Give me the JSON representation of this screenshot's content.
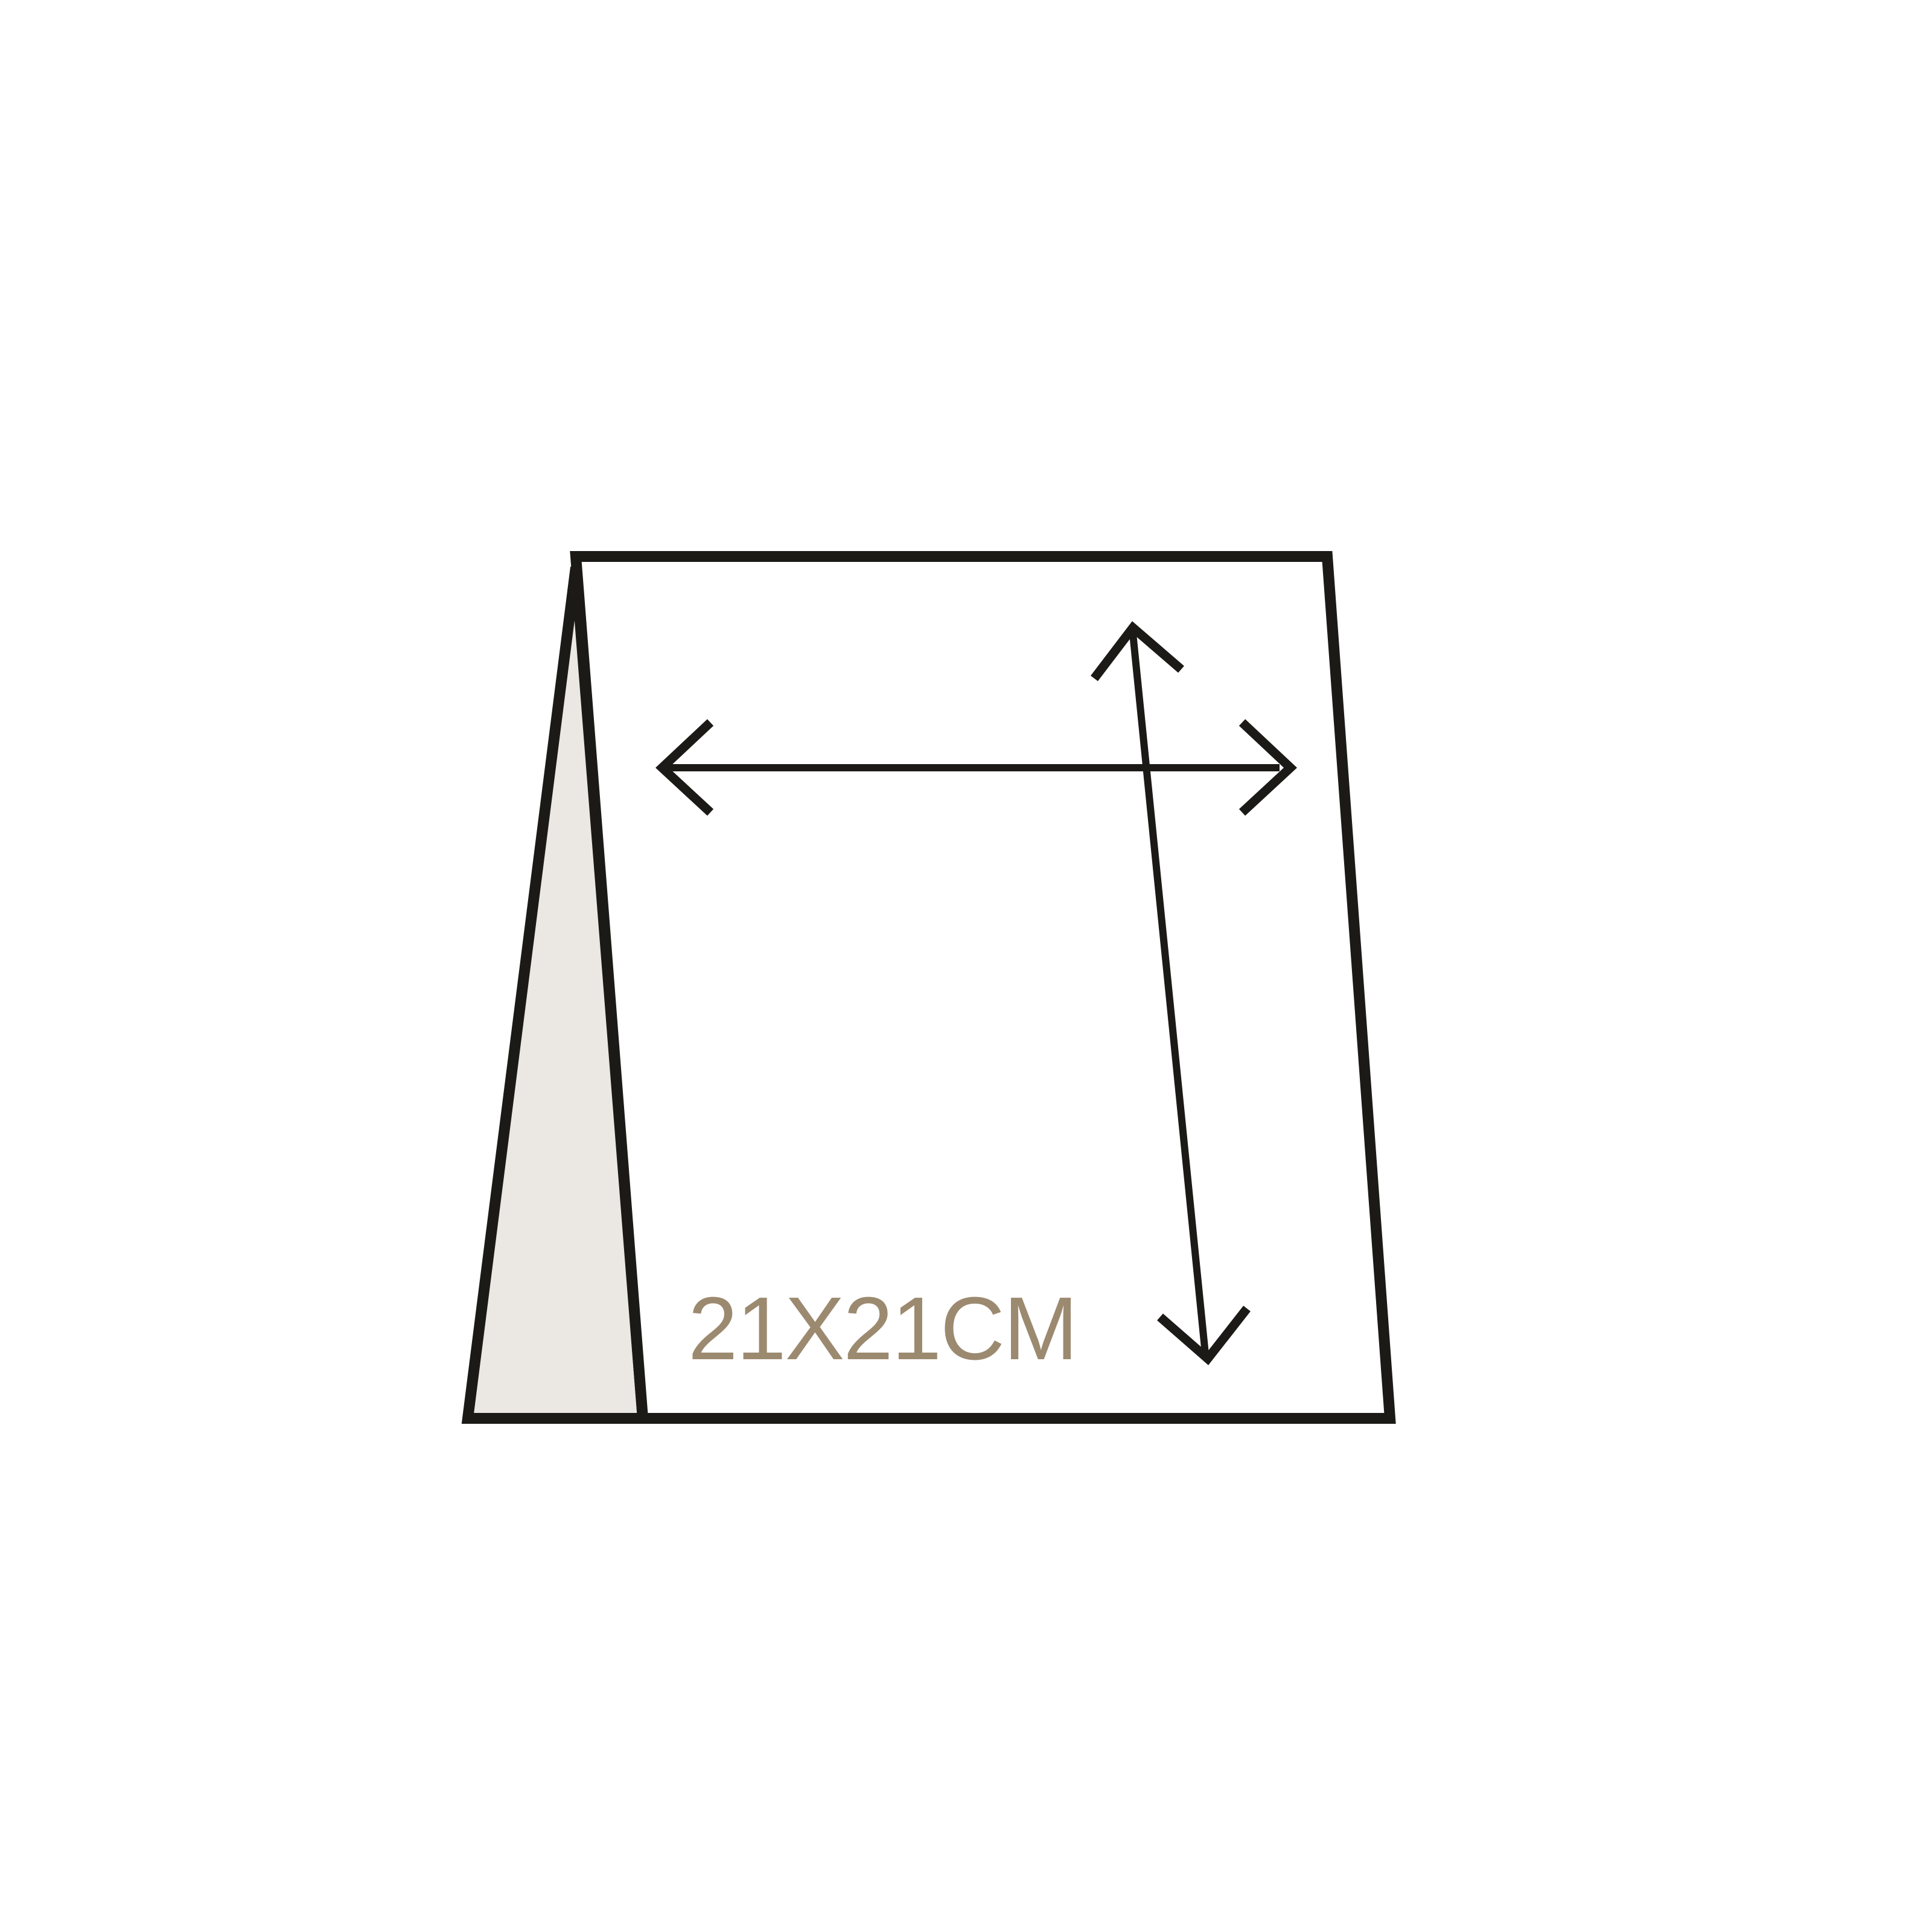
{
  "product": {
    "size_label": "21X21CM"
  },
  "colors": {
    "stroke": "#1b1a17",
    "back_panel_fill": "#ebe7e2",
    "front_panel_fill": "#ffffff",
    "label": "#9c8a70",
    "background": "#ffffff"
  },
  "icons": {
    "width_arrow": "double-headed-horizontal-arrow-icon",
    "height_arrow": "double-headed-vertical-arrow-icon"
  }
}
